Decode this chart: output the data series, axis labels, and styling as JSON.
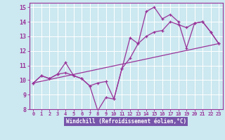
{
  "xlabel": "Windchill (Refroidissement éolien,°C)",
  "bg_color": "#cce8f0",
  "grid_color": "#ffffff",
  "line_color": "#993399",
  "label_bg": "#7755aa",
  "xlim": [
    -0.5,
    23.5
  ],
  "ylim": [
    8,
    15.3
  ],
  "xticks": [
    0,
    1,
    2,
    3,
    4,
    5,
    6,
    7,
    8,
    9,
    10,
    11,
    12,
    13,
    14,
    15,
    16,
    17,
    18,
    19,
    20,
    21,
    22,
    23
  ],
  "yticks": [
    8,
    9,
    10,
    11,
    12,
    13,
    14,
    15
  ],
  "series1_x": [
    0,
    1,
    2,
    3,
    4,
    5,
    6,
    7,
    8,
    9,
    10,
    11,
    12,
    13,
    14,
    15,
    16,
    17,
    18,
    19,
    20,
    21,
    22,
    23
  ],
  "series1_y": [
    9.8,
    10.3,
    10.1,
    10.4,
    11.2,
    10.3,
    10.1,
    9.6,
    7.9,
    8.8,
    8.7,
    10.8,
    12.9,
    12.5,
    14.7,
    15.0,
    14.2,
    14.5,
    14.0,
    12.2,
    13.9,
    14.0,
    13.3,
    12.5
  ],
  "series2_x": [
    0,
    1,
    2,
    3,
    4,
    5,
    6,
    7,
    8,
    9,
    10,
    11,
    12,
    13,
    14,
    15,
    16,
    17,
    18,
    19,
    20,
    21,
    22,
    23
  ],
  "series2_y": [
    9.8,
    10.3,
    10.1,
    10.4,
    10.5,
    10.3,
    10.1,
    9.6,
    9.8,
    9.9,
    8.7,
    10.8,
    11.5,
    12.5,
    13.0,
    13.3,
    13.4,
    14.0,
    13.8,
    13.6,
    13.9,
    14.0,
    13.3,
    12.5
  ],
  "series3_x": [
    0,
    23
  ],
  "series3_y": [
    9.8,
    12.5
  ]
}
